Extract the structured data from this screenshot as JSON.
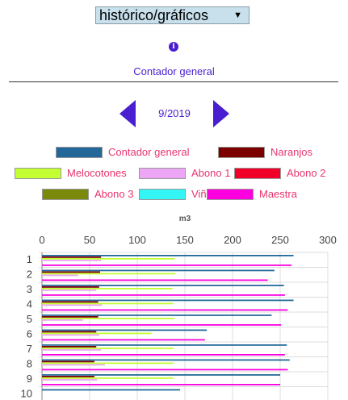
{
  "header": {
    "view_select_value": "histórico/gráficos",
    "section_title": "Contador general",
    "period": "9/2019"
  },
  "icons": {
    "info": "info-icon",
    "dropdown": "triangle-down",
    "prev": "chevron-left",
    "next": "chevron-right"
  },
  "colors": {
    "accent": "#4a1fd1",
    "legend_text": "#e8356d",
    "select_bg": "#c8e0ec"
  },
  "legend": [
    {
      "label": "Contador general",
      "color": "#236899"
    },
    {
      "label": "Naranjos",
      "color": "#7c0000"
    },
    {
      "label": "Melocotones",
      "color": "#c3ff33"
    },
    {
      "label": "Abono 1",
      "color": "#eca6f5"
    },
    {
      "label": "Abono 2",
      "color": "#f00028"
    },
    {
      "label": "Abono 3",
      "color": "#7c8a0c"
    },
    {
      "label": "Viña",
      "color": "#33f5f5"
    },
    {
      "label": "Maestra",
      "color": "#fc00e0"
    }
  ],
  "chart_data": {
    "type": "bar",
    "orientation": "horizontal",
    "title": "m3",
    "xlim": [
      0,
      300
    ],
    "xticks": [
      0,
      50,
      100,
      150,
      200,
      250,
      300
    ],
    "categories": [
      "1",
      "2",
      "3",
      "4",
      "5",
      "6",
      "7",
      "8",
      "9",
      "10"
    ],
    "grid": true,
    "series": [
      {
        "name": "Contador general",
        "color": "#236899",
        "values": [
          264,
          244,
          254,
          264,
          241,
          173,
          257,
          260,
          250,
          145
        ]
      },
      {
        "name": "Naranjos",
        "color": "#7c0000",
        "values": [
          62,
          61,
          60,
          59,
          59,
          57,
          57,
          55,
          55,
          0
        ]
      },
      {
        "name": "Melocotones",
        "color": "#c3ff33",
        "values": [
          139,
          140,
          137,
          138,
          139,
          115,
          138,
          138,
          138,
          0
        ]
      },
      {
        "name": "Abono 1",
        "color": "#eca6f5",
        "values": [
          62,
          38,
          57,
          63,
          43,
          60,
          62,
          66,
          58,
          0
        ]
      },
      {
        "name": "Abono 2",
        "color": "#f00028",
        "values": [
          0,
          0,
          0,
          0,
          0,
          0,
          0,
          0,
          0,
          0
        ]
      },
      {
        "name": "Abono 3",
        "color": "#7c8a0c",
        "values": [
          0,
          0,
          0,
          0,
          0,
          0,
          0,
          0,
          0,
          0
        ]
      },
      {
        "name": "Viña",
        "color": "#33f5f5",
        "values": [
          0,
          0,
          0,
          0,
          0,
          0,
          0,
          0,
          0,
          0
        ]
      },
      {
        "name": "Maestra",
        "color": "#fc00e0",
        "values": [
          262,
          237,
          255,
          258,
          251,
          171,
          255,
          258,
          250,
          0
        ]
      }
    ]
  }
}
